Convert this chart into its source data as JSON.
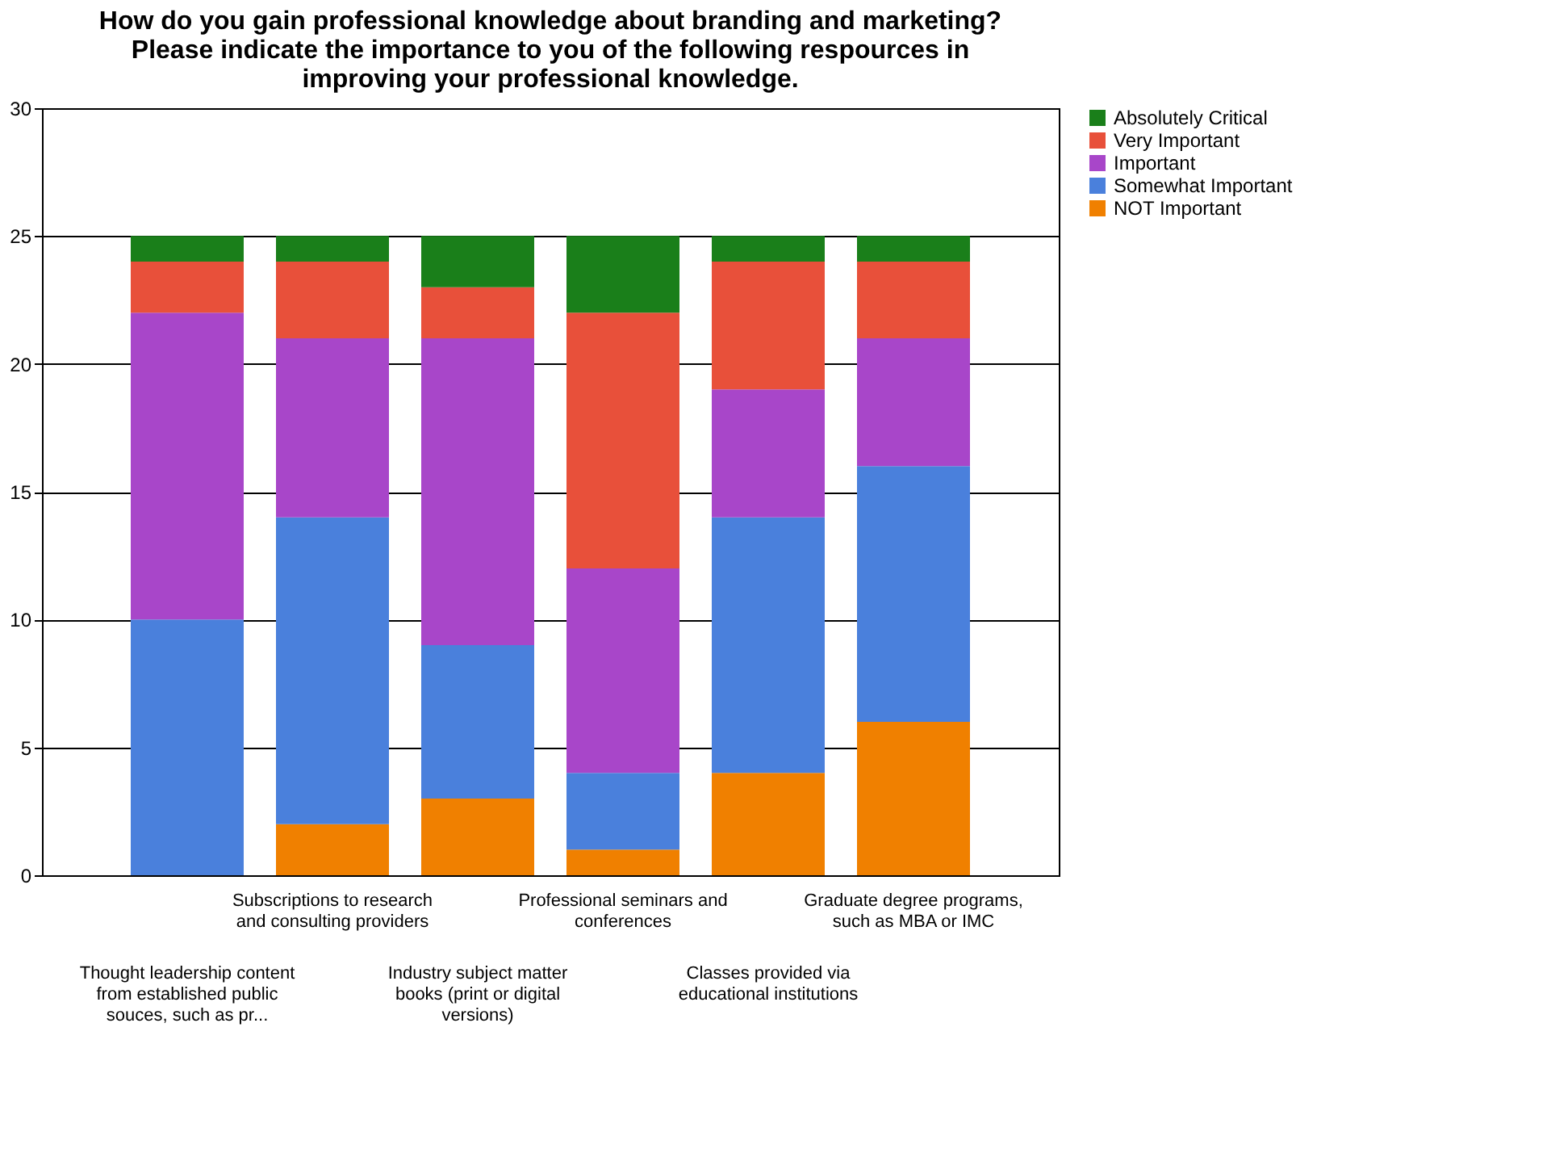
{
  "chart_data": {
    "type": "bar",
    "stacked": true,
    "title": [
      "How do you gain professional knowledge about branding and marketing?",
      "Please indicate the importance to you of the following respources in",
      "improving your professional knowledge."
    ],
    "categories": [
      "Thought leadership content from established public souces, such as pr...",
      "Subscriptions to research and consulting providers",
      "Industry subject matter books (print or digital versions)",
      "Professional seminars and conferences",
      "Classes provided via educational institutions",
      "Graduate degree programs, such as MBA or IMC"
    ],
    "series": [
      {
        "name": "NOT Important",
        "color": "#f08000",
        "values": [
          0,
          2,
          3,
          1,
          4,
          6
        ]
      },
      {
        "name": "Somewhat Important",
        "color": "#4a80dc",
        "values": [
          10,
          12,
          6,
          3,
          10,
          10
        ]
      },
      {
        "name": "Important",
        "color": "#a846c9",
        "values": [
          12,
          7,
          12,
          8,
          5,
          5
        ]
      },
      {
        "name": "Very Important",
        "color": "#e8503a",
        "values": [
          2,
          3,
          2,
          10,
          5,
          3
        ]
      },
      {
        "name": "Absolutely Critical",
        "color": "#1a7f1a",
        "values": [
          1,
          1,
          2,
          3,
          1,
          1
        ]
      }
    ],
    "ylim": [
      0,
      30
    ],
    "yticks": [
      0,
      5,
      10,
      15,
      20,
      25,
      30
    ],
    "grid": "y",
    "legend": "right"
  }
}
